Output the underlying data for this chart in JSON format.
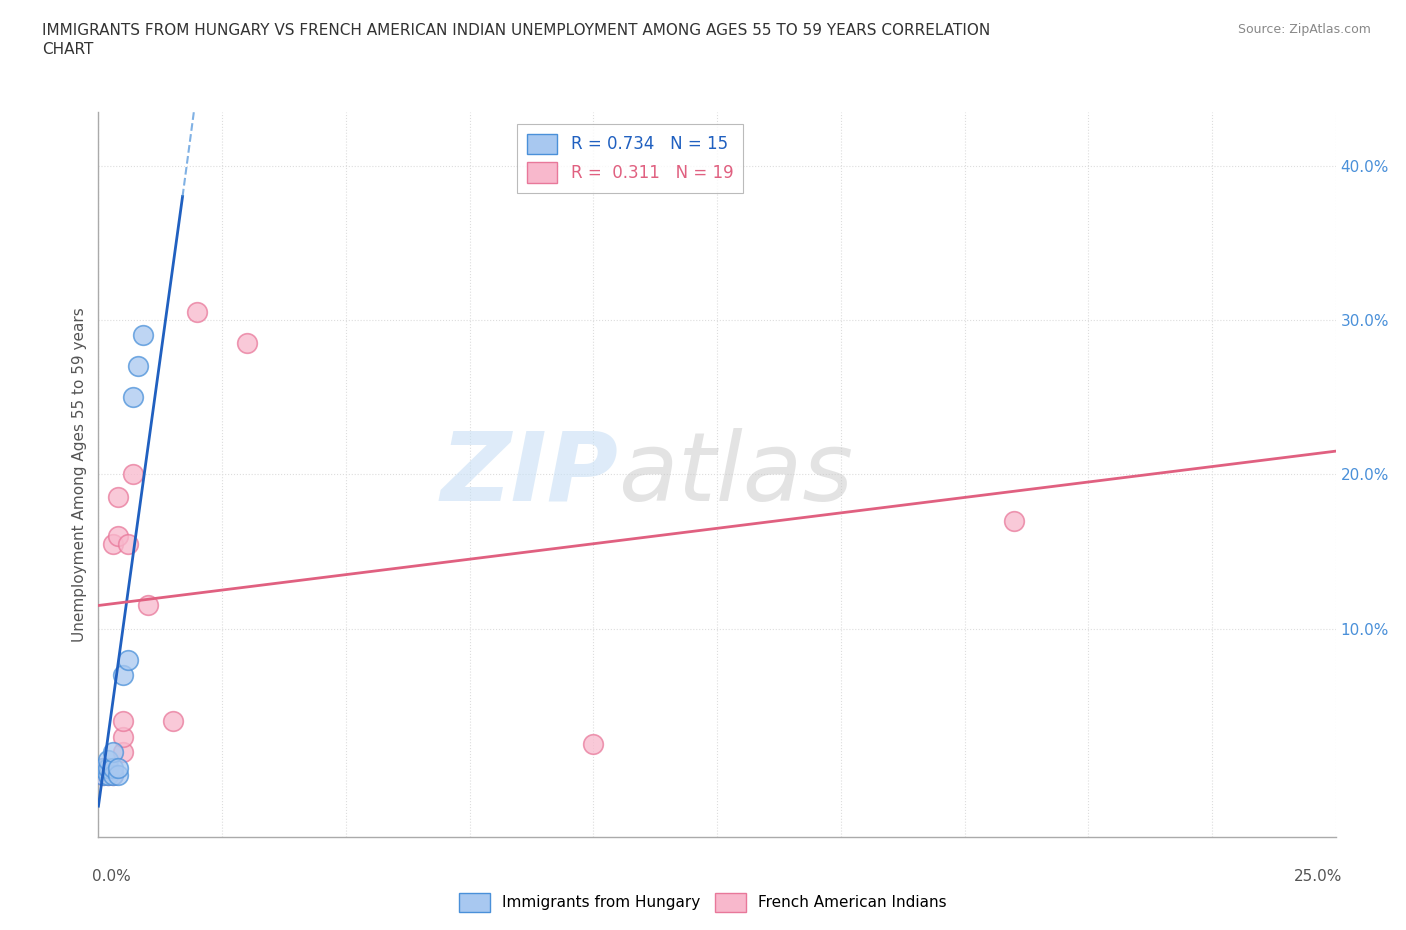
{
  "title_line1": "IMMIGRANTS FROM HUNGARY VS FRENCH AMERICAN INDIAN UNEMPLOYMENT AMONG AGES 55 TO 59 YEARS CORRELATION",
  "title_line2": "CHART",
  "source": "Source: ZipAtlas.com",
  "xlabel_bottom_left": "0.0%",
  "xlabel_bottom_right": "25.0%",
  "ylabel": "Unemployment Among Ages 55 to 59 years",
  "right_ytick_vals": [
    0.4,
    0.3,
    0.2,
    0.1
  ],
  "xlim": [
    0.0,
    0.25
  ],
  "ylim": [
    -0.035,
    0.435
  ],
  "legend_r1": "R = 0.734   N = 15",
  "legend_r2": "R =  0.311   N = 19",
  "watermark_zip": "ZIP",
  "watermark_atlas": "atlas",
  "blue_color": "#a8c8f0",
  "pink_color": "#f8b8cc",
  "blue_edge_color": "#4a90d9",
  "pink_edge_color": "#e8789a",
  "blue_line_color": "#2060c0",
  "pink_line_color": "#e06080",
  "blue_scatter": [
    [
      0.001,
      0.005
    ],
    [
      0.001,
      0.01
    ],
    [
      0.002,
      0.005
    ],
    [
      0.002,
      0.01
    ],
    [
      0.002,
      0.015
    ],
    [
      0.003,
      0.005
    ],
    [
      0.003,
      0.01
    ],
    [
      0.003,
      0.02
    ],
    [
      0.004,
      0.005
    ],
    [
      0.004,
      0.01
    ],
    [
      0.005,
      0.07
    ],
    [
      0.006,
      0.08
    ],
    [
      0.007,
      0.25
    ],
    [
      0.008,
      0.27
    ],
    [
      0.009,
      0.29
    ]
  ],
  "pink_scatter": [
    [
      0.001,
      0.005
    ],
    [
      0.001,
      0.01
    ],
    [
      0.002,
      0.005
    ],
    [
      0.002,
      0.01
    ],
    [
      0.003,
      0.005
    ],
    [
      0.003,
      0.155
    ],
    [
      0.004,
      0.16
    ],
    [
      0.004,
      0.185
    ],
    [
      0.005,
      0.02
    ],
    [
      0.005,
      0.03
    ],
    [
      0.005,
      0.04
    ],
    [
      0.006,
      0.155
    ],
    [
      0.007,
      0.2
    ],
    [
      0.01,
      0.115
    ],
    [
      0.015,
      0.04
    ],
    [
      0.02,
      0.305
    ],
    [
      0.03,
      0.285
    ],
    [
      0.1,
      0.025
    ],
    [
      0.185,
      0.17
    ]
  ],
  "blue_trendline_solid": [
    [
      0.0,
      -0.015
    ],
    [
      0.017,
      0.38
    ]
  ],
  "blue_trendline_dashed": [
    [
      0.017,
      0.38
    ],
    [
      0.022,
      0.5
    ]
  ],
  "pink_trendline": [
    [
      0.0,
      0.115
    ],
    [
      0.25,
      0.215
    ]
  ],
  "grid_color": "#dddddd",
  "grid_linestyle": "dotted"
}
